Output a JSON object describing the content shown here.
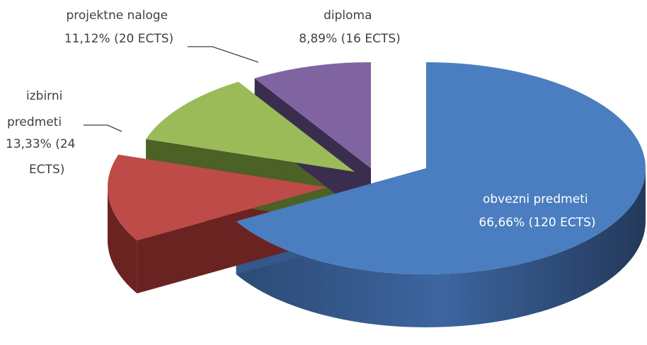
{
  "chart_data": {
    "type": "pie",
    "style": "3d-exploded",
    "title": "",
    "slices": [
      {
        "name": "obvezni predmeti",
        "value": 66.66,
        "ects": 120,
        "color": "#4a7ec0",
        "side_color": "#34588a",
        "label_lines": [
          "obvezni predmeti",
          "66,66% (120 ECTS)"
        ]
      },
      {
        "name": "izbirni predmeti",
        "value": 13.33,
        "ects": 24,
        "color": "#be4b48",
        "side_color": "#6b2321",
        "label_lines": [
          "izbirni",
          "predmeti",
          "13,33% (24",
          "ECTS)"
        ]
      },
      {
        "name": "projektne naloge",
        "value": 11.12,
        "ects": 20,
        "color": "#9bbb59",
        "side_color": "#4b6126",
        "label_lines": [
          "projektne naloge",
          "11,12% (20 ECTS)"
        ]
      },
      {
        "name": "diploma",
        "value": 8.89,
        "ects": 16,
        "color": "#8064a2",
        "side_color": "#3b2d4e",
        "label_lines": [
          "diploma",
          "8,89% (16 ECTS)"
        ]
      }
    ]
  }
}
